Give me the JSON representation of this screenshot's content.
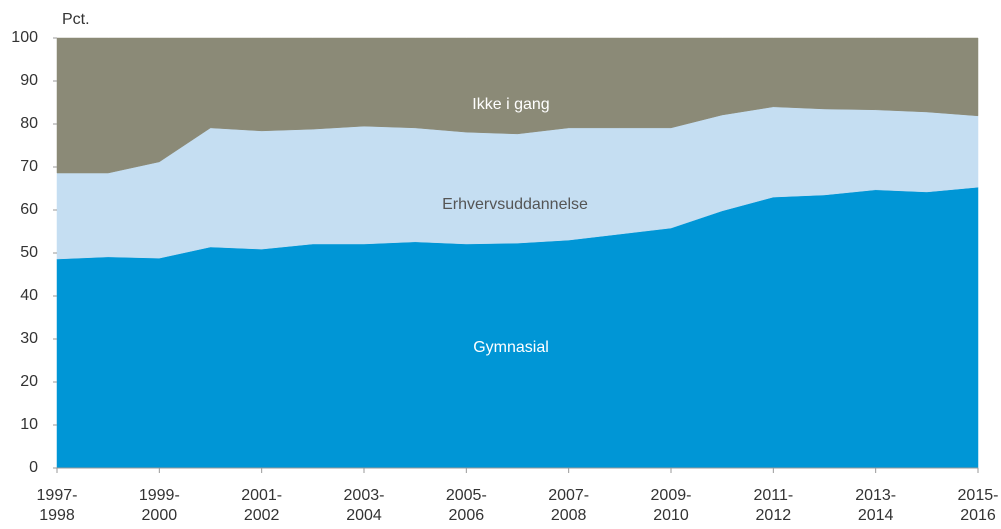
{
  "chart_data": {
    "type": "stacked_area",
    "y_axis_label": "Pct.",
    "categories": [
      "1997-\n1998",
      null,
      "1999-\n2000",
      null,
      "2001-\n2002",
      null,
      "2003-\n2004",
      null,
      "2005-\n2006",
      null,
      "2007-\n2008",
      null,
      "2009-\n2010",
      null,
      "2011-\n2012",
      null,
      "2013-\n2014",
      null,
      "2015-\n2016"
    ],
    "series": [
      {
        "name": "Gymnasial",
        "color": "#0096d6",
        "values": [
          48.6,
          49.1,
          48.8,
          51.4,
          50.9,
          52.1,
          52.1,
          52.6,
          52.1,
          52.3,
          53.0,
          54.4,
          55.8,
          59.8,
          63.0,
          63.5,
          64.7,
          64.2,
          65.3
        ]
      },
      {
        "name": "Erhvervsuddannelse",
        "color": "#c5def2",
        "values": [
          20.0,
          19.5,
          22.4,
          27.7,
          27.5,
          26.7,
          27.4,
          26.5,
          26.0,
          25.4,
          26.1,
          24.7,
          23.3,
          22.3,
          21.0,
          20.0,
          18.6,
          18.6,
          16.6
        ]
      },
      {
        "name": "Ikke i gang",
        "color": "#8b8a77",
        "values": [
          31.4,
          31.4,
          28.8,
          20.9,
          21.6,
          21.2,
          20.5,
          20.9,
          21.9,
          22.3,
          20.9,
          20.9,
          20.9,
          17.9,
          16.0,
          16.5,
          16.7,
          17.2,
          18.1
        ]
      }
    ],
    "ylim": [
      0,
      100
    ],
    "yticks": [
      0,
      10,
      20,
      30,
      40,
      50,
      60,
      70,
      80,
      90,
      100
    ],
    "grid": false
  }
}
